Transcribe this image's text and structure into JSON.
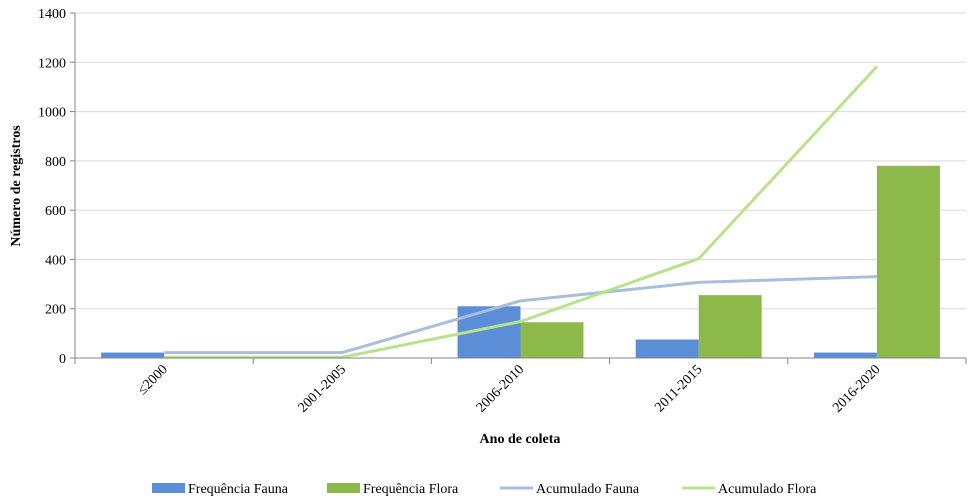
{
  "chart_data": {
    "type": "bar",
    "title": "",
    "xlabel": "Ano de coleta",
    "ylabel": "Número de registros",
    "ylim": [
      0,
      1400
    ],
    "yticks": [
      0,
      200,
      400,
      600,
      800,
      1000,
      1200,
      1400
    ],
    "grid": true,
    "legend_position": "bottom",
    "categories": [
      "≤2000",
      "2001-2005",
      "2006-2010",
      "2011-2015",
      "2016-2020"
    ],
    "series": [
      {
        "name": "Frequência Fauna",
        "kind": "bar",
        "color": "#5B8ED6",
        "values": [
          22,
          0,
          210,
          75,
          22
        ]
      },
      {
        "name": "Frequência Flora",
        "kind": "bar",
        "color": "#8DB84A",
        "values": [
          3,
          0,
          145,
          255,
          780
        ]
      },
      {
        "name": "Acumulado Fauna",
        "kind": "line",
        "color": "#A9BEDB",
        "values": [
          22,
          22,
          232,
          307,
          330
        ]
      },
      {
        "name": "Acumulado Flora",
        "kind": "line",
        "color": "#B9E38A",
        "values": [
          3,
          3,
          148,
          403,
          1183
        ]
      }
    ]
  }
}
